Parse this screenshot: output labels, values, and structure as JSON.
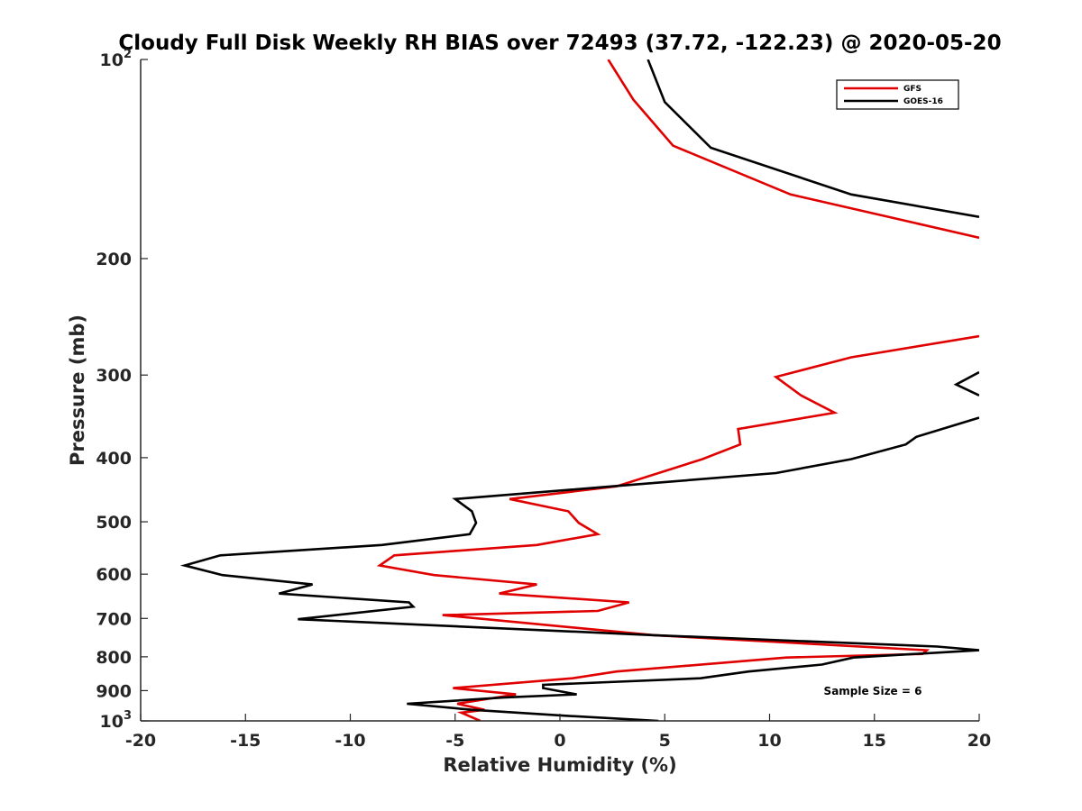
{
  "chart_data": {
    "type": "line",
    "title": "Cloudy Full Disk Weekly RH BIAS over 72493 (37.72, -122.23) @ 2020-05-20",
    "xlabel": "Relative Humidity (%)",
    "ylabel": "Pressure (mb)",
    "xlim": [
      -20,
      20
    ],
    "ylim": [
      100,
      1000
    ],
    "y_scale": "log",
    "y_reversed": true,
    "grid": false,
    "legend_position": "top-right",
    "x_ticks": [
      {
        "value": -20,
        "label": "-20"
      },
      {
        "value": -15,
        "label": "-15"
      },
      {
        "value": -10,
        "label": "-10"
      },
      {
        "value": -5,
        "label": "-5"
      },
      {
        "value": 0,
        "label": "0"
      },
      {
        "value": 5,
        "label": "5"
      },
      {
        "value": 10,
        "label": "10"
      },
      {
        "value": 15,
        "label": "15"
      },
      {
        "value": 20,
        "label": "20"
      }
    ],
    "y_ticks": [
      {
        "value": 100,
        "base": "10",
        "exp": "2"
      },
      {
        "value": 200,
        "base": "200",
        "exp": ""
      },
      {
        "value": 300,
        "base": "300",
        "exp": ""
      },
      {
        "value": 400,
        "base": "400",
        "exp": ""
      },
      {
        "value": 500,
        "base": "500",
        "exp": ""
      },
      {
        "value": 600,
        "base": "600",
        "exp": ""
      },
      {
        "value": 700,
        "base": "700",
        "exp": ""
      },
      {
        "value": 800,
        "base": "800",
        "exp": ""
      },
      {
        "value": 900,
        "base": "900",
        "exp": ""
      },
      {
        "value": 1000,
        "base": "10",
        "exp": "3"
      }
    ],
    "series": [
      {
        "name": "GFS",
        "color": "#e00000",
        "segments": [
          [
            [
              2.3,
              100
            ],
            [
              3.5,
              115
            ],
            [
              5.4,
              135
            ],
            [
              11,
              160
            ],
            [
              20,
              186
            ]
          ],
          [
            [
              20,
              262
            ],
            [
              13.9,
              282
            ],
            [
              10.3,
              302
            ],
            [
              11.5,
              322
            ],
            [
              13.1,
              342
            ],
            [
              8.5,
              362
            ],
            [
              8.6,
              382
            ],
            [
              6.8,
              402
            ],
            [
              2.7,
              442
            ],
            [
              -2.4,
              462
            ],
            [
              0.4,
              482
            ],
            [
              0.9,
              502
            ],
            [
              1.8,
              522
            ],
            [
              -1.1,
              542
            ],
            [
              -7.9,
              562
            ],
            [
              -8.6,
              582
            ],
            [
              -6,
              602
            ],
            [
              -1.1,
              622
            ],
            [
              -2.9,
              642
            ],
            [
              3.3,
              662
            ],
            [
              1.8,
              682
            ],
            [
              -5.6,
              692
            ],
            [
              4.5,
              742
            ],
            [
              17.5,
              782
            ],
            [
              17.3,
              792
            ],
            [
              10.8,
              802
            ],
            [
              2.7,
              842
            ],
            [
              0.6,
              862
            ],
            [
              -5.1,
              892
            ],
            [
              -2.1,
              912
            ],
            [
              -4.9,
              942
            ],
            [
              -3.6,
              962
            ],
            [
              -4.7,
              972
            ],
            [
              -3.8,
              1000
            ]
          ]
        ]
      },
      {
        "name": "GOES-16",
        "color": "#000000",
        "segments": [
          [
            [
              4.2,
              100
            ],
            [
              5,
              116
            ],
            [
              7.2,
              136
            ],
            [
              13.9,
              160
            ],
            [
              20,
              173
            ]
          ],
          [
            [
              20,
              297
            ],
            [
              18.9,
              310
            ],
            [
              20,
              322
            ]
          ],
          [
            [
              20,
              348
            ],
            [
              17,
              372
            ],
            [
              16.5,
              382
            ],
            [
              13.9,
              402
            ],
            [
              10.3,
              422
            ],
            [
              2.5,
              442
            ],
            [
              -5,
              462
            ],
            [
              -4.2,
              482
            ],
            [
              -4,
              502
            ],
            [
              -4.3,
              522
            ],
            [
              -8.5,
              542
            ],
            [
              -16.2,
              562
            ],
            [
              -17.9,
              582
            ],
            [
              -16.1,
              602
            ],
            [
              -11.8,
              622
            ],
            [
              -13.4,
              642
            ],
            [
              -7.2,
              662
            ],
            [
              -7,
              672
            ],
            [
              -12.5,
              702
            ],
            [
              4.5,
              742
            ],
            [
              18,
              772
            ],
            [
              20,
              782
            ],
            [
              14,
              802
            ],
            [
              12.5,
              822
            ],
            [
              9,
              842
            ],
            [
              6.7,
              862
            ],
            [
              -0.8,
              882
            ],
            [
              -0.8,
              892
            ],
            [
              0.8,
              912
            ],
            [
              -2.7,
              922
            ],
            [
              -7.3,
              942
            ],
            [
              -4.2,
              962
            ],
            [
              0.2,
              982
            ],
            [
              4.7,
              1000
            ]
          ]
        ]
      }
    ],
    "annotations": [
      {
        "text": "Sample Size = 6"
      }
    ]
  }
}
